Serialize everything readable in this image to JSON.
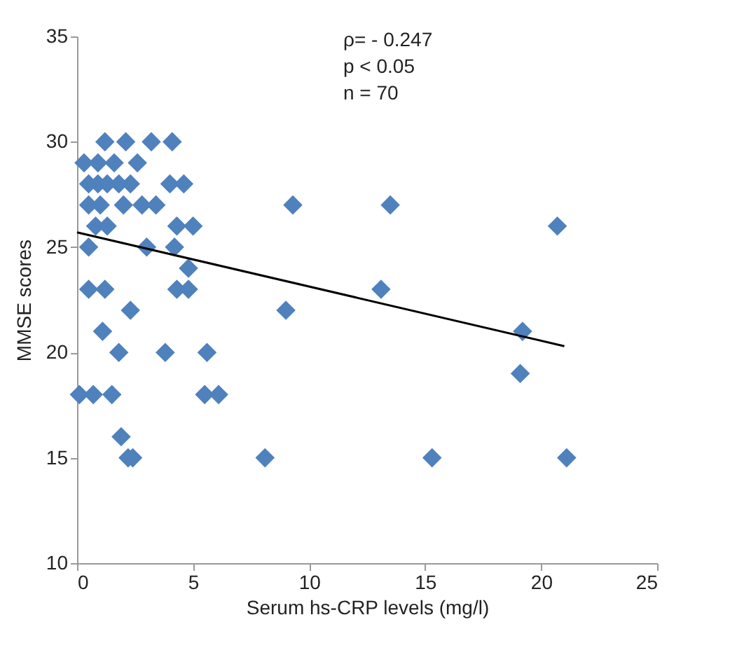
{
  "chart_data": {
    "type": "scatter",
    "xlabel": "Serum hs-CRP levels (mg/l)",
    "ylabel": "MMSE scores",
    "annotations": [
      "ρ= - 0.247",
      "p < 0.05",
      "n = 70"
    ],
    "xlim": [
      0,
      25
    ],
    "xticks": [
      0,
      5,
      10,
      15,
      20,
      25
    ],
    "ylim": [
      10,
      35
    ],
    "yticks": [
      10,
      15,
      20,
      25,
      30,
      35
    ],
    "grid": false,
    "marker": "diamond",
    "series": [
      {
        "color": "#4f81bd",
        "x": [
          1.2,
          2.1,
          3.2,
          4.1,
          0.3,
          0.9,
          1.6,
          2.6,
          0.5,
          0.9,
          1.3,
          1.8,
          2.3,
          4.0,
          4.6,
          0.5,
          1.0,
          2.0,
          2.8,
          3.4,
          9.3,
          13.5,
          0.8,
          1.3,
          4.3,
          5.0,
          20.7,
          0.5,
          3.0,
          4.2,
          4.8,
          0.5,
          1.2,
          4.3,
          4.8,
          13.1,
          2.3,
          9.0,
          1.1,
          19.2,
          1.8,
          3.8,
          5.6,
          19.1,
          0.1,
          0.7,
          1.5,
          5.5,
          6.1,
          1.9,
          2.2,
          2.4,
          8.1,
          15.3,
          21.1
        ],
        "values": [
          30,
          30,
          30,
          30,
          29,
          29,
          29,
          29,
          28,
          28,
          28,
          28,
          28,
          28,
          28,
          27,
          27,
          27,
          27,
          27,
          27,
          27,
          26,
          26,
          26,
          26,
          26,
          25,
          25,
          25,
          24,
          23,
          23,
          23,
          23,
          23,
          22,
          22,
          21,
          21,
          20,
          20,
          20,
          19,
          18,
          18,
          18,
          18,
          18,
          16,
          15,
          15,
          15,
          15,
          15
        ]
      },
      {
        "type": "line",
        "color": "#000000",
        "marker": "none",
        "line_style": "solid",
        "x": [
          0,
          21
        ],
        "values": [
          25.7,
          20.3
        ]
      }
    ]
  }
}
